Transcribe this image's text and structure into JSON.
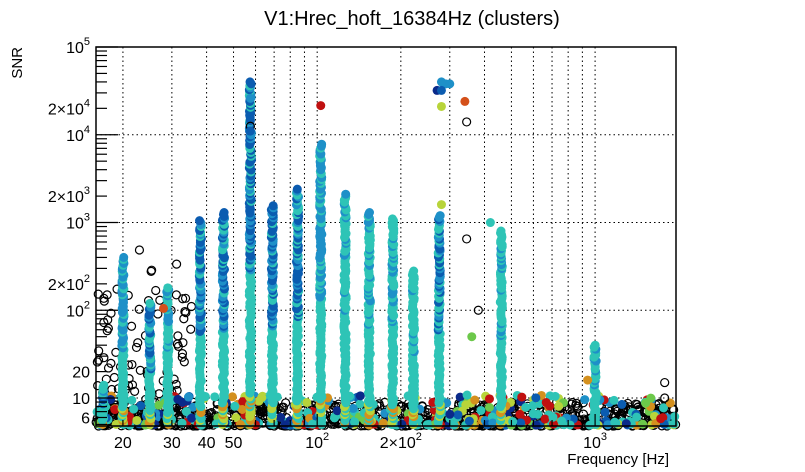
{
  "chart_data": {
    "type": "scatter",
    "title": "V1:Hrec_hoft_16384Hz (clusters)",
    "xlabel": "Frequency [Hz]",
    "ylabel": "SNR",
    "xscale": "log",
    "yscale": "log",
    "xlim": [
      16,
      1955
    ],
    "ylim": [
      4.8,
      100000
    ],
    "grid": true,
    "legend": "none",
    "x_ticks": [
      {
        "value": 20,
        "label": "20"
      },
      {
        "value": 30,
        "label": "30"
      },
      {
        "value": 40,
        "label": "40"
      },
      {
        "value": 50,
        "label": "50"
      },
      {
        "value": 100,
        "label": "10",
        "sup": "2"
      },
      {
        "value": 200,
        "label": "2×10",
        "sup": "2"
      },
      {
        "value": 1000,
        "label": "10",
        "sup": "3"
      }
    ],
    "x_grid": [
      20,
      30,
      40,
      50,
      60,
      70,
      80,
      90,
      100,
      200,
      300,
      400,
      500,
      600,
      700,
      800,
      900,
      1000
    ],
    "y_ticks": [
      {
        "value": 6,
        "label": "6"
      },
      {
        "value": 10,
        "label": "10"
      },
      {
        "value": 20,
        "label": "20"
      },
      {
        "value": 100,
        "label": "10",
        "sup": "2"
      },
      {
        "value": 200,
        "label": "2×10",
        "sup": "2"
      },
      {
        "value": 1000,
        "label": "10",
        "sup": "3"
      },
      {
        "value": 2000,
        "label": "2×10",
        "sup": "3"
      },
      {
        "value": 10000,
        "label": "10",
        "sup": "4"
      },
      {
        "value": 20000,
        "label": "2×10",
        "sup": "4"
      },
      {
        "value": 100000,
        "label": "10",
        "sup": "5"
      }
    ],
    "y_grid": [
      10,
      100,
      1000,
      10000
    ],
    "marker_legend": {
      "open-circle": "clusters (unfilled, black outline)",
      "filled": "clusters colored by parameter (jet-like palette)"
    },
    "palette": {
      "dark-blue": "#0a2a8a",
      "blue": "#0b5cb0",
      "light-blue": "#1e90c8",
      "teal": "#2ec4b6",
      "green": "#6cc84a",
      "yellow-green": "#b8d43a",
      "orange": "#d4901e",
      "red-orange": "#d4501a",
      "red": "#c01010",
      "dark-red": "#800000"
    },
    "columns": [
      {
        "freq": 17,
        "snr_max": 14,
        "color": "blue"
      },
      {
        "freq": 20,
        "snr_max": 400,
        "color": "light-blue"
      },
      {
        "freq": 25,
        "snr_max": 120,
        "color": "blue"
      },
      {
        "freq": 29,
        "snr_max": 180,
        "color": "teal"
      },
      {
        "freq": 38,
        "snr_max": 1050,
        "color": "blue"
      },
      {
        "freq": 46,
        "snr_max": 1300,
        "color": "blue"
      },
      {
        "freq": 57.5,
        "snr_max": 40000,
        "color": "blue"
      },
      {
        "freq": 69,
        "snr_max": 1550,
        "color": "blue"
      },
      {
        "freq": 85,
        "snr_max": 2400,
        "color": "blue"
      },
      {
        "freq": 103,
        "snr_max": 7800,
        "color": "light-blue"
      },
      {
        "freq": 126,
        "snr_max": 2100,
        "color": "teal"
      },
      {
        "freq": 154,
        "snr_max": 1300,
        "color": "teal"
      },
      {
        "freq": 187,
        "snr_max": 1100,
        "color": "teal"
      },
      {
        "freq": 222,
        "snr_max": 280,
        "color": "teal"
      },
      {
        "freq": 275,
        "snr_max": 1200,
        "color": "blue"
      },
      {
        "freq": 460,
        "snr_max": 800,
        "color": "teal"
      },
      {
        "freq": 1000,
        "snr_max": 40,
        "color": "teal"
      }
    ],
    "notable_points": [
      {
        "freq": 103,
        "snr": 21500,
        "color": "red"
      },
      {
        "freq": 57.5,
        "snr": 26000,
        "color": "light-blue"
      },
      {
        "freq": 57.5,
        "snr": 14500,
        "color": "blue"
      },
      {
        "freq": 57.5,
        "snr": 12500,
        "color": "open"
      },
      {
        "freq": 57.5,
        "snr": 11000,
        "color": "blue"
      },
      {
        "freq": 270,
        "snr": 32000,
        "color": "dark-blue"
      },
      {
        "freq": 280,
        "snr": 40000,
        "color": "light-blue"
      },
      {
        "freq": 290,
        "snr": 38000,
        "color": "light-blue"
      },
      {
        "freq": 300,
        "snr": 38000,
        "color": "light-blue"
      },
      {
        "freq": 280,
        "snr": 32000,
        "color": "blue"
      },
      {
        "freq": 280,
        "snr": 21000,
        "color": "yellow-green"
      },
      {
        "freq": 340,
        "snr": 24000,
        "color": "red-orange"
      },
      {
        "freq": 345,
        "snr": 14000,
        "color": "open"
      },
      {
        "freq": 280,
        "snr": 1600,
        "color": "yellow-green"
      },
      {
        "freq": 345,
        "snr": 650,
        "color": "open"
      },
      {
        "freq": 420,
        "snr": 1000,
        "color": "teal"
      },
      {
        "freq": 360,
        "snr": 50,
        "color": "green"
      },
      {
        "freq": 380,
        "snr": 100,
        "color": "open"
      },
      {
        "freq": 28,
        "snr": 105,
        "color": "red-orange"
      },
      {
        "freq": 1780,
        "snr": 15,
        "color": "open"
      },
      {
        "freq": 1780,
        "snr": 10,
        "color": "open"
      },
      {
        "freq": 940,
        "snr": 16,
        "color": "orange"
      }
    ],
    "noise_floor": {
      "snr_min": 4.8,
      "snr_max": 9,
      "freq_range": [
        16,
        1955
      ]
    }
  }
}
